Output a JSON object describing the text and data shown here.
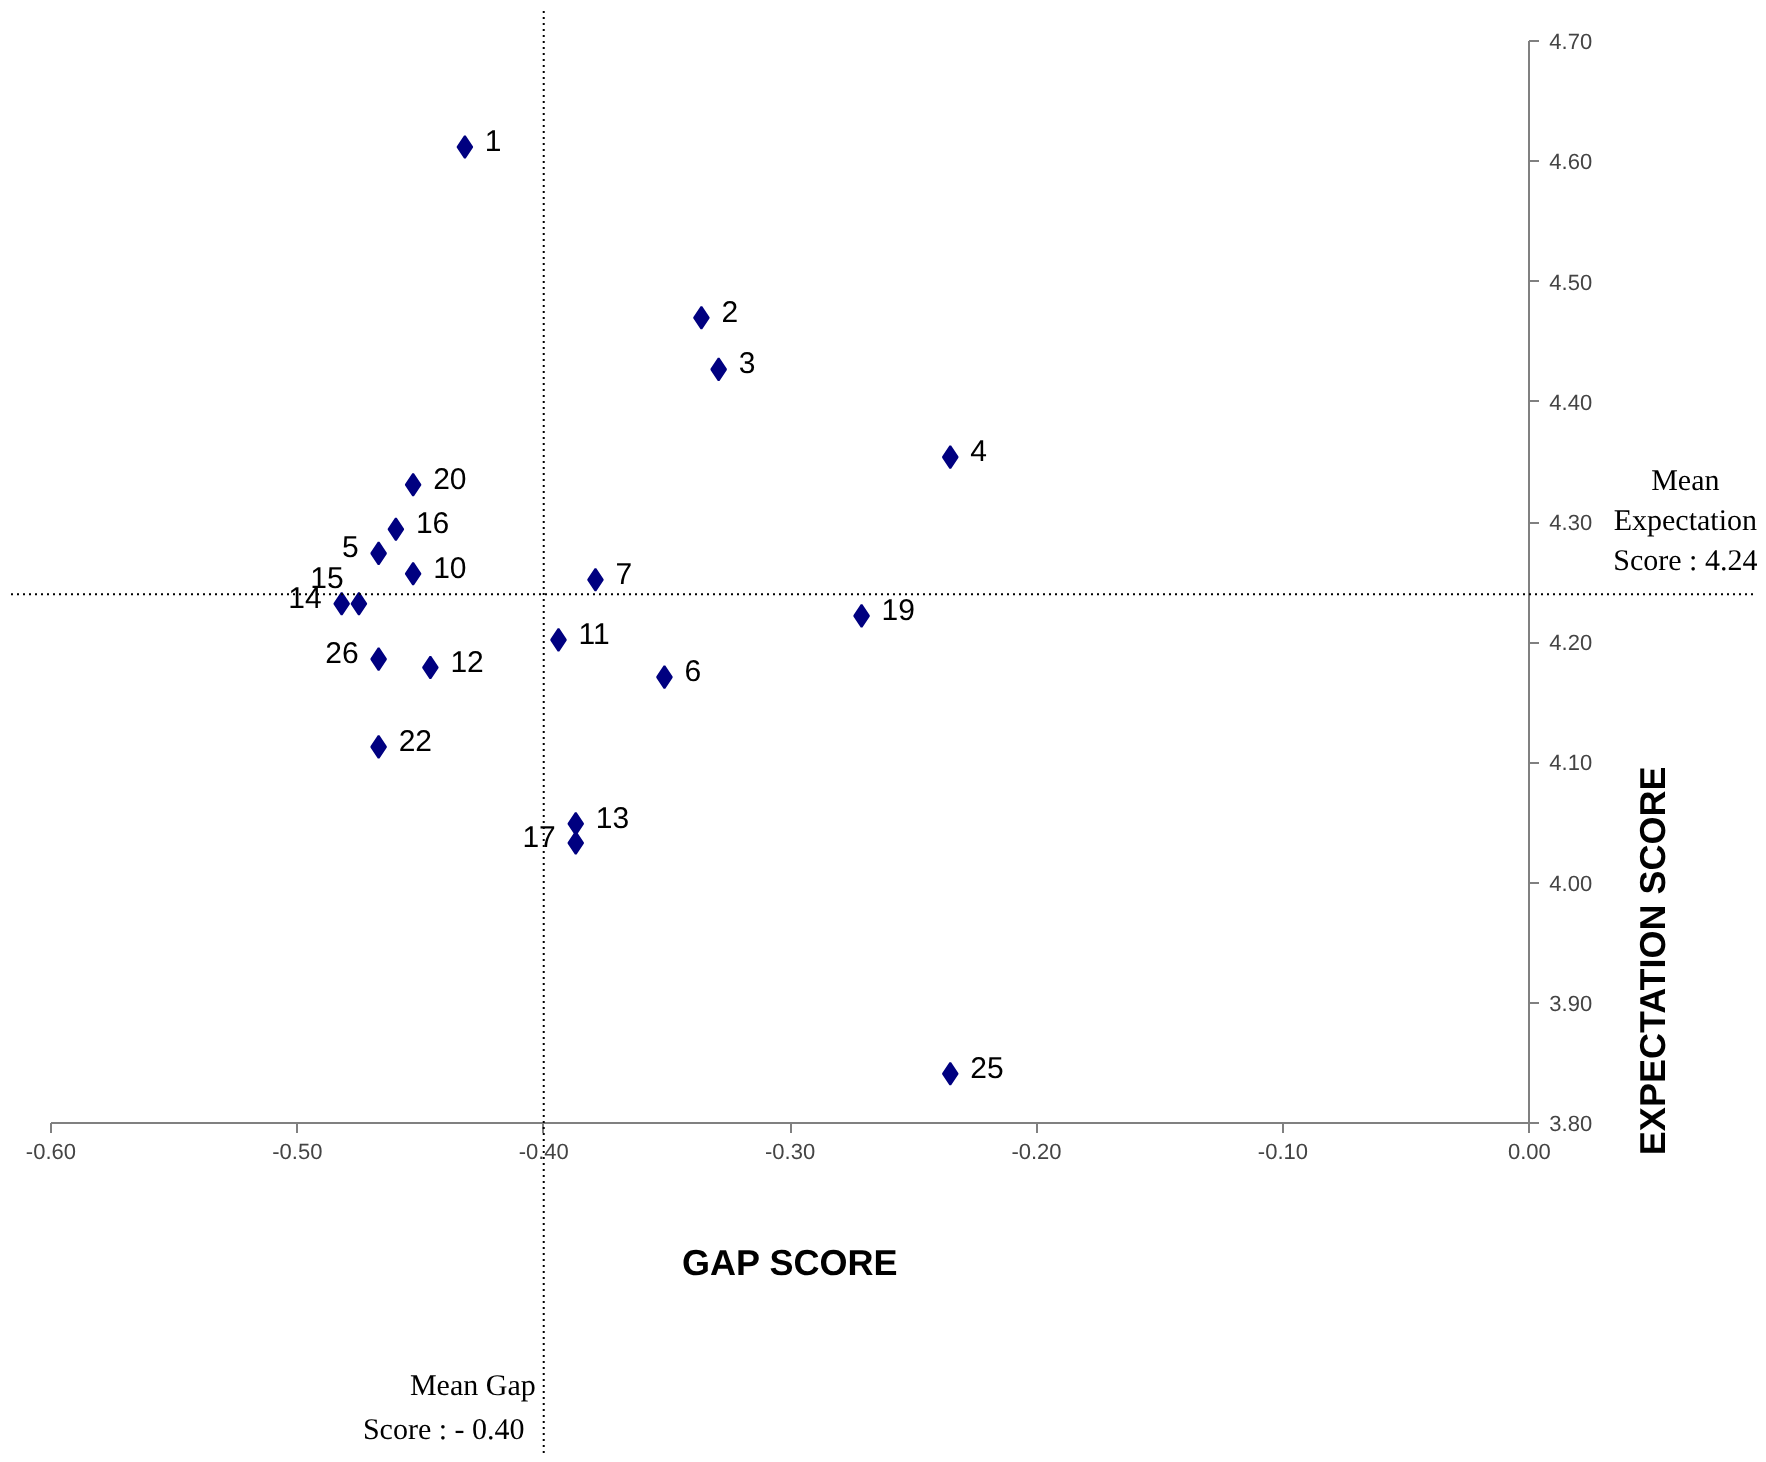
{
  "chart_data": {
    "type": "scatter",
    "xlabel": "GAP SCORE",
    "ylabel": "EXPECTATION SCORE",
    "marker": "diamond",
    "grid": false,
    "xlim": [
      -0.6,
      0.0
    ],
    "ylim": [
      3.8,
      4.7
    ],
    "xticks": [
      {
        "value": -0.6,
        "label": "-0.60"
      },
      {
        "value": -0.5,
        "label": "-0.50"
      },
      {
        "value": -0.4,
        "label": "-0.40"
      },
      {
        "value": -0.3,
        "label": "-0.30"
      },
      {
        "value": -0.2,
        "label": "-0.20"
      },
      {
        "value": -0.1,
        "label": "-0.10"
      },
      {
        "value": 0.0,
        "label": "0.00"
      }
    ],
    "yticks": [
      {
        "value": 3.8,
        "label": "3.80"
      },
      {
        "value": 3.9,
        "label": "3.90"
      },
      {
        "value": 4.0,
        "label": "4.00"
      },
      {
        "value": 4.1,
        "label": "4.10"
      },
      {
        "value": 4.2,
        "label": "4.20"
      },
      {
        "value": 4.3,
        "label": "4.30"
      },
      {
        "value": 4.4,
        "label": "4.40"
      },
      {
        "value": 4.5,
        "label": "4.50"
      },
      {
        "value": 4.6,
        "label": "4.60"
      },
      {
        "value": 4.7,
        "label": "4.70"
      }
    ],
    "series": [
      {
        "color": "#000080",
        "x": [
          -0.432,
          -0.336,
          -0.329,
          -0.235,
          -0.467,
          -0.46,
          -0.453,
          -0.453,
          -0.482,
          -0.475,
          -0.467,
          -0.446,
          -0.379,
          -0.394,
          -0.351,
          -0.271,
          -0.467,
          -0.387,
          -0.387,
          -0.235
        ],
        "values": [
          4.612,
          4.47,
          4.427,
          4.354,
          4.274,
          4.294,
          4.331,
          4.257,
          4.232,
          4.232,
          4.186,
          4.179,
          4.252,
          4.202,
          4.171,
          4.222,
          4.113,
          4.049,
          4.033,
          3.841
        ]
      }
    ],
    "ref_lines": [
      {
        "axis": "x",
        "value": -0.4,
        "label": "Mean Gap Score : - 0.40",
        "line_style": "dotted"
      },
      {
        "axis": "y",
        "value": 4.24,
        "label": "Mean Expectation Score : 4.24",
        "line_style": "dotted"
      }
    ],
    "annotations": [
      {
        "text": "1",
        "x": -0.432,
        "y": 4.612
      },
      {
        "text": "2",
        "x": -0.336,
        "y": 4.47
      },
      {
        "text": "3",
        "x": -0.329,
        "y": 4.427
      },
      {
        "text": "4",
        "x": -0.235,
        "y": 4.354
      },
      {
        "text": "5",
        "x": -0.467,
        "y": 4.274
      },
      {
        "text": "16",
        "x": -0.46,
        "y": 4.294
      },
      {
        "text": "20",
        "x": -0.453,
        "y": 4.331
      },
      {
        "text": "10",
        "x": -0.453,
        "y": 4.257
      },
      {
        "text": "14",
        "x": -0.482,
        "y": 4.232
      },
      {
        "text": "15",
        "x": -0.475,
        "y": 4.232
      },
      {
        "text": "26",
        "x": -0.467,
        "y": 4.186
      },
      {
        "text": "12",
        "x": -0.446,
        "y": 4.179
      },
      {
        "text": "7",
        "x": -0.379,
        "y": 4.252
      },
      {
        "text": "11",
        "x": -0.394,
        "y": 4.202
      },
      {
        "text": "6",
        "x": -0.351,
        "y": 4.171
      },
      {
        "text": "19",
        "x": -0.271,
        "y": 4.222
      },
      {
        "text": "22",
        "x": -0.467,
        "y": 4.113
      },
      {
        "text": "13",
        "x": -0.387,
        "y": 4.049
      },
      {
        "text": "17",
        "x": -0.387,
        "y": 4.033
      },
      {
        "text": "25",
        "x": -0.235,
        "y": 3.841
      }
    ]
  }
}
